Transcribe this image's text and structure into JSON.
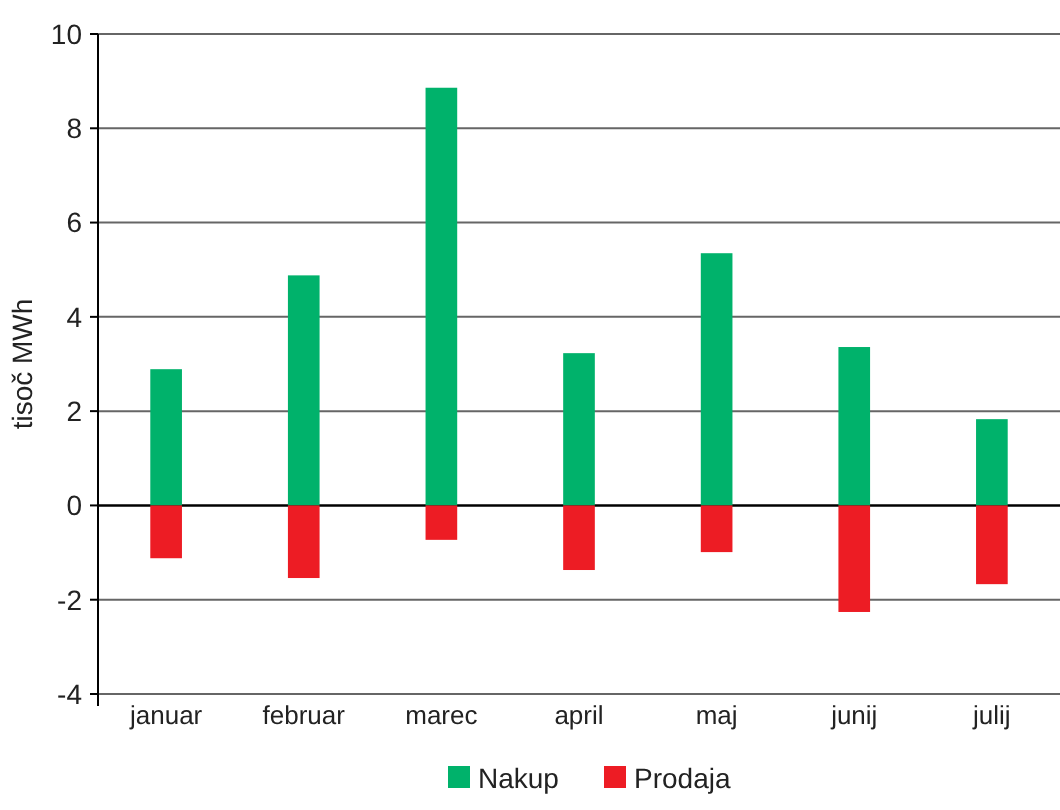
{
  "chart_data": {
    "type": "bar",
    "ylabel": "tisoč MWh",
    "categories": [
      "januar",
      "februar",
      "marec",
      "april",
      "maj",
      "junij",
      "julij"
    ],
    "series": [
      {
        "name": "Nakup",
        "color": "#00b26b",
        "values": [
          2.89,
          4.88,
          8.86,
          3.23,
          5.35,
          3.36,
          1.83
        ]
      },
      {
        "name": "Prodaja",
        "color": "#ed1c24",
        "values": [
          -1.12,
          -1.54,
          -0.73,
          -1.37,
          -0.99,
          -2.26,
          -1.67
        ]
      }
    ],
    "stacked": true,
    "ylim": [
      -4,
      10
    ],
    "yticks": [
      -4,
      -2,
      0,
      2,
      4,
      6,
      8,
      10
    ],
    "grid": "y",
    "legend": "bottom"
  }
}
